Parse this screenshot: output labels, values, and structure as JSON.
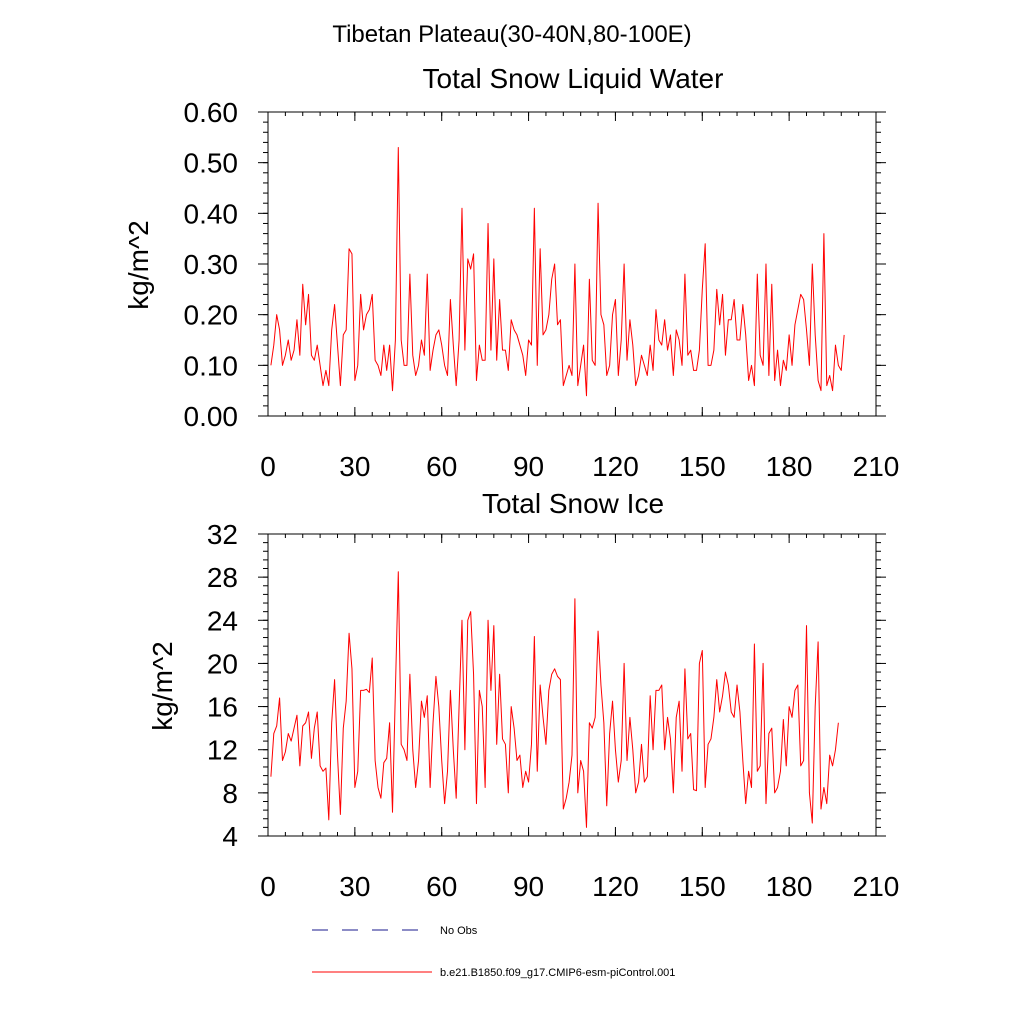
{
  "page": {
    "suptitle": "Tibetan Plateau(30-40N,80-100E)"
  },
  "chart_data": [
    {
      "type": "line",
      "title": "Total Snow Liquid Water",
      "xlabel": "",
      "ylabel": "kg/m^2",
      "xlim": [
        0,
        210
      ],
      "ylim": [
        0,
        0.6
      ],
      "xticks": [
        0,
        30,
        60,
        90,
        120,
        150,
        180,
        210
      ],
      "xtick_labels": [
        "0",
        "30",
        "60",
        "90",
        "120",
        "150",
        "180",
        "210"
      ],
      "yticks": [
        0,
        0.1,
        0.2,
        0.3,
        0.4,
        0.5,
        0.6
      ],
      "ytick_labels": [
        "0.00",
        "0.10",
        "0.20",
        "0.30",
        "0.40",
        "0.50",
        "0.60"
      ],
      "grid": false,
      "series": [
        {
          "name": "b.e21.B1850.f09_g17.CMIP6-esm-piControl.001",
          "color": "#ff0000",
          "x_start": 1,
          "x_step": 1,
          "values": [
            0.1,
            0.14,
            0.2,
            0.17,
            0.1,
            0.12,
            0.15,
            0.11,
            0.13,
            0.19,
            0.12,
            0.26,
            0.18,
            0.24,
            0.12,
            0.11,
            0.14,
            0.1,
            0.06,
            0.09,
            0.06,
            0.17,
            0.22,
            0.14,
            0.06,
            0.16,
            0.17,
            0.33,
            0.32,
            0.07,
            0.1,
            0.24,
            0.17,
            0.2,
            0.21,
            0.24,
            0.11,
            0.1,
            0.08,
            0.14,
            0.09,
            0.14,
            0.05,
            0.15,
            0.53,
            0.15,
            0.1,
            0.1,
            0.28,
            0.12,
            0.08,
            0.1,
            0.15,
            0.12,
            0.28,
            0.09,
            0.13,
            0.16,
            0.17,
            0.14,
            0.1,
            0.08,
            0.23,
            0.14,
            0.06,
            0.15,
            0.41,
            0.13,
            0.31,
            0.29,
            0.32,
            0.07,
            0.14,
            0.11,
            0.11,
            0.38,
            0.13,
            0.31,
            0.11,
            0.23,
            0.13,
            0.13,
            0.09,
            0.19,
            0.17,
            0.16,
            0.14,
            0.12,
            0.08,
            0.15,
            0.14,
            0.41,
            0.1,
            0.33,
            0.16,
            0.17,
            0.2,
            0.27,
            0.3,
            0.18,
            0.19,
            0.06,
            0.08,
            0.1,
            0.08,
            0.3,
            0.06,
            0.1,
            0.14,
            0.04,
            0.27,
            0.11,
            0.1,
            0.42,
            0.2,
            0.18,
            0.08,
            0.1,
            0.2,
            0.23,
            0.08,
            0.15,
            0.3,
            0.11,
            0.19,
            0.14,
            0.06,
            0.08,
            0.12,
            0.1,
            0.08,
            0.14,
            0.09,
            0.21,
            0.15,
            0.14,
            0.19,
            0.13,
            0.16,
            0.08,
            0.17,
            0.15,
            0.1,
            0.28,
            0.12,
            0.13,
            0.09,
            0.09,
            0.13,
            0.25,
            0.34,
            0.1,
            0.1,
            0.13,
            0.25,
            0.18,
            0.24,
            0.12,
            0.19,
            0.19,
            0.23,
            0.15,
            0.15,
            0.22,
            0.16,
            0.07,
            0.1,
            0.06,
            0.28,
            0.12,
            0.1,
            0.3,
            0.08,
            0.26,
            0.07,
            0.13,
            0.06,
            0.11,
            0.09,
            0.16,
            0.1,
            0.18,
            0.21,
            0.24,
            0.23,
            0.17,
            0.1,
            0.3,
            0.16,
            0.07,
            0.05,
            0.36,
            0.06,
            0.08,
            0.05,
            0.14,
            0.1,
            0.09,
            0.16
          ]
        }
      ]
    },
    {
      "type": "line",
      "title": "Total Snow Ice",
      "xlabel": "",
      "ylabel": "kg/m^2",
      "xlim": [
        0,
        210
      ],
      "ylim": [
        4,
        32
      ],
      "xticks": [
        0,
        30,
        60,
        90,
        120,
        150,
        180,
        210
      ],
      "xtick_labels": [
        "0",
        "30",
        "60",
        "90",
        "120",
        "150",
        "180",
        "210"
      ],
      "yticks": [
        4,
        8,
        12,
        16,
        20,
        24,
        28,
        32
      ],
      "ytick_labels": [
        "4",
        "8",
        "12",
        "16",
        "20",
        "24",
        "28",
        "32"
      ],
      "grid": false,
      "series": [
        {
          "name": "b.e21.B1850.f09_g17.CMIP6-esm-piControl.001",
          "color": "#ff0000",
          "x_start": 1,
          "x_step": 1,
          "values": [
            9.5,
            13.5,
            14.2,
            16.8,
            11.0,
            11.8,
            13.5,
            12.8,
            14.0,
            15.2,
            10.5,
            14.2,
            14.5,
            15.5,
            11.2,
            14.0,
            15.5,
            10.5,
            10.0,
            10.3,
            5.5,
            14.5,
            18.5,
            11.5,
            6.0,
            14.0,
            16.5,
            22.8,
            19.5,
            8.5,
            10.0,
            17.5,
            17.5,
            17.6,
            17.3,
            20.5,
            11.0,
            8.5,
            7.5,
            10.8,
            11.2,
            14.5,
            6.2,
            17.5,
            28.5,
            12.5,
            12.0,
            11.0,
            19.0,
            12.0,
            8.5,
            11.0,
            16.5,
            15.0,
            17.0,
            8.5,
            14.5,
            18.8,
            16.0,
            11.0,
            7.0,
            10.0,
            17.5,
            12.0,
            7.5,
            16.0,
            24.0,
            12.0,
            24.0,
            24.8,
            19.0,
            7.0,
            17.5,
            16.0,
            8.5,
            24.0,
            17.5,
            23.5,
            12.5,
            19.0,
            13.0,
            12.5,
            8.0,
            16.0,
            14.0,
            11.0,
            11.5,
            8.5,
            10.0,
            9.0,
            12.5,
            22.5,
            10.0,
            18.0,
            15.0,
            12.5,
            17.5,
            19.0,
            19.5,
            18.8,
            18.5,
            6.5,
            7.5,
            9.0,
            11.5,
            26.0,
            8.0,
            11.0,
            10.0,
            4.8,
            14.5,
            14.0,
            15.0,
            23.0,
            18.0,
            14.5,
            6.8,
            13.5,
            16.5,
            12.0,
            9.0,
            11.0,
            20.0,
            11.0,
            15.0,
            12.0,
            8.0,
            9.0,
            12.5,
            9.0,
            9.5,
            17.0,
            12.0,
            17.5,
            17.5,
            18.0,
            12.0,
            15.0,
            13.0,
            8.0,
            15.0,
            16.5,
            10.0,
            19.5,
            13.0,
            13.5,
            8.3,
            8.2,
            20.0,
            21.2,
            8.5,
            12.5,
            13.0,
            15.0,
            18.5,
            15.5,
            17.0,
            19.2,
            18.0,
            15.5,
            15.0,
            18.0,
            15.5,
            11.0,
            7.0,
            10.0,
            8.5,
            21.8,
            10.0,
            10.5,
            20.0,
            7.0,
            13.5,
            14.0,
            8.0,
            8.5,
            10.0,
            14.8,
            10.5,
            16.0,
            15.0,
            17.5,
            18.0,
            10.5,
            11.0,
            23.5,
            8.0,
            5.2,
            16.0,
            22.0,
            6.5,
            8.5,
            7.0,
            11.5,
            10.5,
            12.0,
            14.5
          ]
        }
      ]
    }
  ],
  "legend": {
    "items": [
      {
        "label": "No Obs",
        "style": "dashed",
        "color": "#1a1a8c"
      },
      {
        "label": "b.e21.B1850.f09_g17.CMIP6-esm-piControl.001",
        "style": "solid",
        "color": "#ff0000"
      }
    ]
  }
}
